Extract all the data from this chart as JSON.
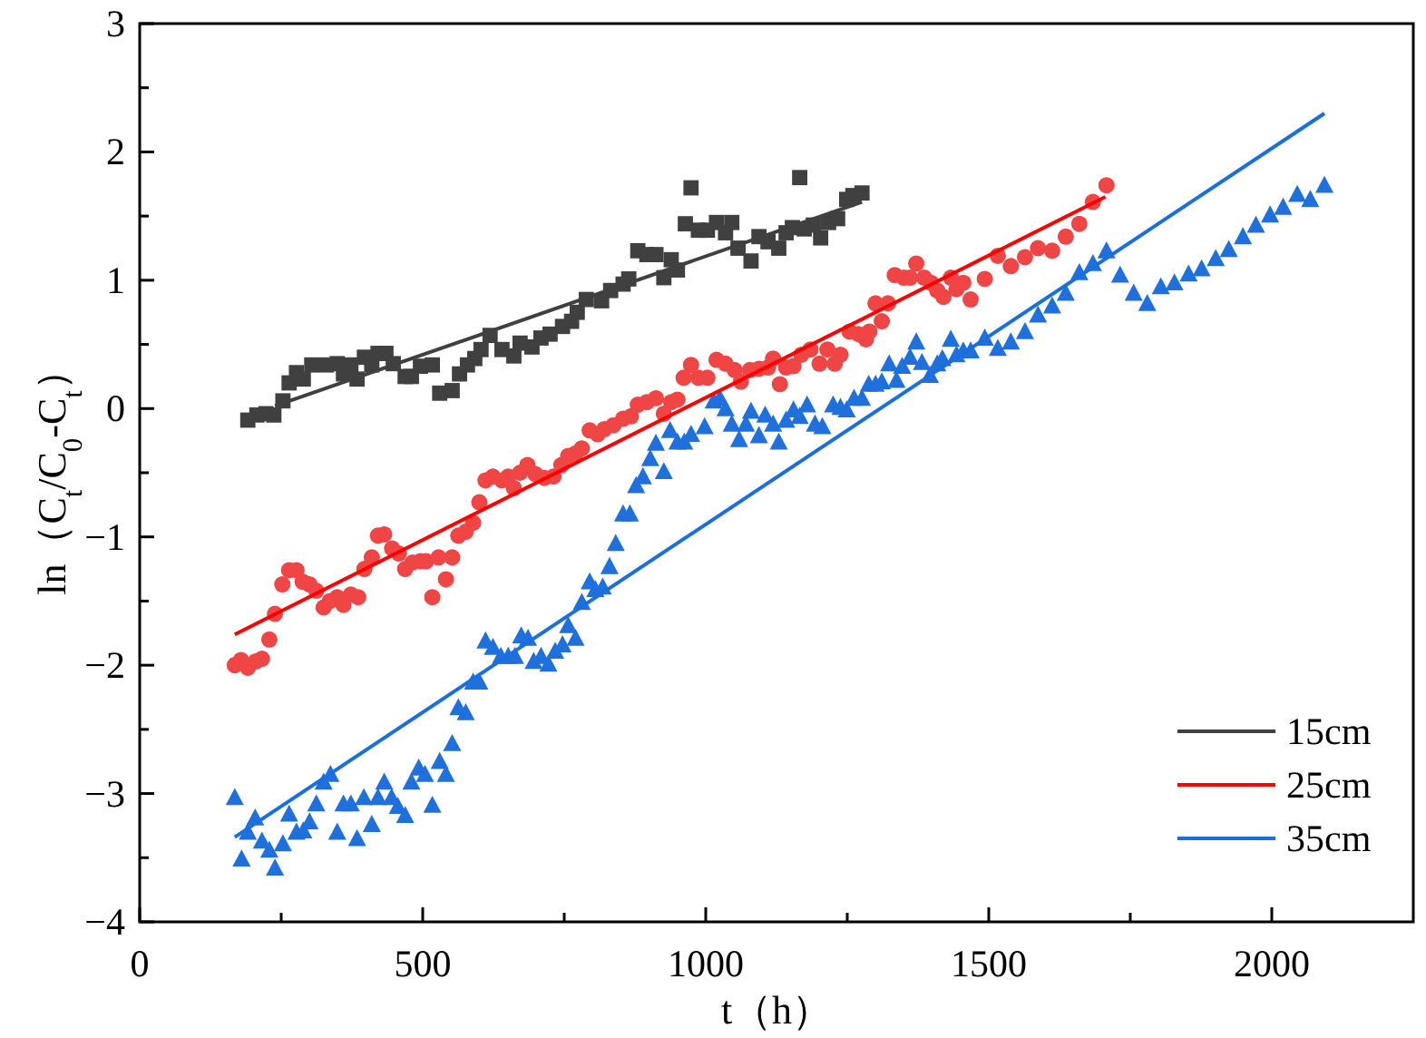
{
  "chart_data": {
    "type": "scatter",
    "xlabel": "t（h）",
    "ylabel": "ln（C$_{t}$/C$_{0}$-C$_{t}$）",
    "xlim": [
      0,
      2250
    ],
    "ylim": [
      -4,
      3
    ],
    "xticks": [
      0,
      {
        "value": 250,
        "label": null
      },
      500,
      {
        "value": 750,
        "label": null
      },
      1000,
      {
        "value": 1250,
        "label": null
      },
      1500,
      {
        "value": 1750,
        "label": null
      },
      2000
    ],
    "yticks": [
      {
        "value": -4,
        "label": "−4"
      },
      {
        "value": -3.5,
        "label": null
      },
      {
        "value": -3,
        "label": "−3"
      },
      {
        "value": -2.5,
        "label": null
      },
      {
        "value": -2,
        "label": "−2"
      },
      {
        "value": -1.5,
        "label": null
      },
      {
        "value": -1,
        "label": "−1"
      },
      {
        "value": -0.5,
        "label": null
      },
      0,
      {
        "value": 0.5,
        "label": null
      },
      1,
      {
        "value": 1.5,
        "label": null
      },
      2,
      {
        "value": 2.5,
        "label": null
      },
      3
    ],
    "grid": false,
    "legend": "bottom right",
    "series": [
      {
        "marker": "square",
        "color": "#404040",
        "x": [
          191,
          207,
          223,
          237,
          253,
          264,
          277,
          289,
          304,
          330,
          349,
          360,
          373,
          384,
          397,
          410,
          421,
          435,
          448,
          469,
          480,
          496,
          517,
          530,
          552,
          565,
          579,
          592,
          603,
          619,
          640,
          661,
          672,
          693,
          709,
          725,
          747,
          763,
          773,
          789,
          816,
          832,
          854,
          864,
          880,
          896,
          912,
          926,
          939,
          950,
          964,
          974,
          987,
          1003,
          1019,
          1035,
          1046,
          1057,
          1080,
          1094,
          1110,
          1129,
          1142,
          1153,
          1166,
          1174,
          1190,
          1203,
          1217,
          1233,
          1249,
          1260,
          1276
        ],
        "values": [
          -0.09,
          -0.05,
          -0.04,
          -0.05,
          0.06,
          0.2,
          0.28,
          0.23,
          0.34,
          0.34,
          0.35,
          0.27,
          0.34,
          0.23,
          0.4,
          0.34,
          0.43,
          0.43,
          0.35,
          0.25,
          0.25,
          0.33,
          0.34,
          0.12,
          0.14,
          0.27,
          0.34,
          0.39,
          0.46,
          0.57,
          0.46,
          0.41,
          0.51,
          0.48,
          0.55,
          0.58,
          0.64,
          0.68,
          0.75,
          0.85,
          0.84,
          0.92,
          0.97,
          1.01,
          1.23,
          1.2,
          1.2,
          1.02,
          1.16,
          1.08,
          1.44,
          1.72,
          1.39,
          1.39,
          1.45,
          1.37,
          1.45,
          1.25,
          1.15,
          1.34,
          1.3,
          1.25,
          1.37,
          1.41,
          1.8,
          1.4,
          1.43,
          1.33,
          1.45,
          1.48,
          1.63,
          1.66,
          1.68
        ]
      },
      {
        "marker": "circle",
        "color": "#f04545",
        "x": [
          168,
          179,
          191,
          205,
          216,
          229,
          239,
          252,
          264,
          277,
          288,
          300,
          312,
          325,
          336,
          349,
          360,
          373,
          386,
          397,
          410,
          421,
          432,
          446,
          458,
          469,
          482,
          496,
          506,
          517,
          528,
          541,
          552,
          563,
          576,
          589,
          600,
          611,
          624,
          640,
          651,
          661,
          672,
          685,
          699,
          715,
          731,
          745,
          757,
          770,
          781,
          795,
          809,
          821,
          837,
          854,
          868,
          880,
          896,
          912,
          926,
          939,
          950,
          961,
          974,
          987,
          1003,
          1019,
          1035,
          1051,
          1062,
          1078,
          1094,
          1110,
          1119,
          1131,
          1142,
          1155,
          1169,
          1185,
          1201,
          1215,
          1228,
          1238,
          1254,
          1270,
          1283,
          1289,
          1300,
          1311,
          1322,
          1334,
          1350,
          1361,
          1372,
          1386,
          1398,
          1409,
          1420,
          1433,
          1443,
          1455,
          1468,
          1493,
          1516,
          1539,
          1564,
          1587,
          1612,
          1636,
          1660,
          1684,
          1708
        ],
        "values": [
          -2.0,
          -1.96,
          -2.02,
          -1.97,
          -1.95,
          -1.8,
          -1.6,
          -1.37,
          -1.26,
          -1.26,
          -1.35,
          -1.37,
          -1.42,
          -1.55,
          -1.5,
          -1.47,
          -1.53,
          -1.45,
          -1.47,
          -1.25,
          -1.16,
          -0.99,
          -0.98,
          -1.09,
          -1.13,
          -1.25,
          -1.2,
          -1.19,
          -1.19,
          -1.47,
          -1.16,
          -1.33,
          -1.16,
          -0.99,
          -0.96,
          -0.89,
          -0.73,
          -0.56,
          -0.53,
          -0.56,
          -0.53,
          -0.62,
          -0.5,
          -0.44,
          -0.51,
          -0.54,
          -0.53,
          -0.44,
          -0.37,
          -0.35,
          -0.31,
          -0.17,
          -0.2,
          -0.16,
          -0.13,
          -0.08,
          -0.06,
          0.03,
          0.05,
          0.08,
          -0.04,
          0.05,
          0.07,
          0.24,
          0.34,
          0.24,
          0.24,
          0.38,
          0.35,
          0.3,
          0.21,
          0.3,
          0.31,
          0.32,
          0.39,
          0.19,
          0.32,
          0.33,
          0.42,
          0.46,
          0.35,
          0.46,
          0.35,
          0.42,
          0.6,
          0.58,
          0.54,
          0.6,
          0.82,
          0.68,
          0.82,
          1.04,
          1.02,
          1.02,
          1.13,
          1.02,
          0.98,
          0.92,
          0.87,
          1.02,
          0.93,
          0.98,
          0.85,
          1.01,
          1.19,
          1.11,
          1.18,
          1.25,
          1.23,
          1.34,
          1.44,
          1.61,
          1.74
        ]
      },
      {
        "marker": "triangle",
        "color": "#1f70dc",
        "x": [
          168,
          180,
          191,
          204,
          216,
          229,
          239,
          253,
          264,
          277,
          289,
          300,
          312,
          325,
          337,
          349,
          360,
          373,
          384,
          396,
          410,
          421,
          432,
          445,
          456,
          469,
          480,
          493,
          504,
          517,
          530,
          541,
          552,
          563,
          576,
          589,
          600,
          611,
          624,
          638,
          651,
          663,
          674,
          686,
          696,
          709,
          722,
          734,
          747,
          757,
          770,
          781,
          795,
          805,
          818,
          830,
          841,
          854,
          866,
          877,
          889,
          902,
          912,
          926,
          937,
          950,
          962,
          974,
          998,
          1014,
          1025,
          1035,
          1046,
          1059,
          1071,
          1080,
          1094,
          1105,
          1119,
          1129,
          1142,
          1155,
          1166,
          1179,
          1193,
          1206,
          1225,
          1238,
          1249,
          1262,
          1276,
          1288,
          1300,
          1311,
          1324,
          1337,
          1347,
          1361,
          1372,
          1382,
          1396,
          1409,
          1418,
          1433,
          1443,
          1455,
          1468,
          1493,
          1516,
          1539,
          1564,
          1587,
          1612,
          1636,
          1660,
          1684,
          1708,
          1732,
          1756,
          1780,
          1804,
          1828,
          1853,
          1876,
          1901,
          1924,
          1949,
          1972,
          1997,
          2020,
          2045,
          2068,
          2093
        ],
        "values": [
          -3.03,
          -3.51,
          -3.3,
          -3.19,
          -3.37,
          -3.44,
          -3.58,
          -3.39,
          -3.16,
          -3.3,
          -3.29,
          -3.22,
          -3.08,
          -2.91,
          -2.85,
          -3.3,
          -3.08,
          -3.08,
          -3.35,
          -3.03,
          -3.24,
          -3.03,
          -2.91,
          -3.03,
          -3.1,
          -3.17,
          -2.91,
          -2.8,
          -2.85,
          -3.09,
          -2.75,
          -2.85,
          -2.61,
          -2.33,
          -2.37,
          -2.13,
          -2.13,
          -1.81,
          -1.86,
          -1.93,
          -1.93,
          -1.93,
          -1.77,
          -1.79,
          -1.97,
          -1.93,
          -1.99,
          -1.89,
          -1.84,
          -1.69,
          -1.79,
          -1.51,
          -1.35,
          -1.41,
          -1.39,
          -1.23,
          -1.05,
          -0.82,
          -0.82,
          -0.6,
          -0.53,
          -0.39,
          -0.27,
          -0.49,
          -0.17,
          -0.26,
          -0.26,
          -0.2,
          -0.14,
          0.06,
          0.08,
          0.0,
          -0.12,
          -0.24,
          -0.12,
          -0.02,
          -0.21,
          -0.05,
          -0.12,
          -0.26,
          -0.09,
          -0.01,
          -0.06,
          0.03,
          -0.12,
          -0.14,
          0.03,
          0.01,
          -0.01,
          0.08,
          0.08,
          0.19,
          0.19,
          0.21,
          0.35,
          0.22,
          0.33,
          0.4,
          0.52,
          0.36,
          0.26,
          0.35,
          0.39,
          0.54,
          0.42,
          0.45,
          0.45,
          0.55,
          0.47,
          0.52,
          0.6,
          0.73,
          0.8,
          0.9,
          1.06,
          1.13,
          1.23,
          1.04,
          0.9,
          0.82,
          0.95,
          0.98,
          1.05,
          1.09,
          1.17,
          1.24,
          1.34,
          1.43,
          1.51,
          1.57,
          1.67,
          1.63,
          1.74
        ]
      },
      {
        "type": "line",
        "name": "15cm",
        "color": "#404040",
        "line_style": "solid",
        "x": [
          239,
          1276
        ],
        "values": [
          0.02,
          1.61
        ]
      },
      {
        "type": "line",
        "name": "25cm",
        "color": "#ff0000",
        "line_style": "solid",
        "x": [
          168,
          1706
        ],
        "values": [
          -1.76,
          1.65
        ]
      },
      {
        "type": "line",
        "name": "35cm",
        "color": "#1a6fe0",
        "line_style": "solid",
        "x": [
          168,
          2093
        ],
        "values": [
          -3.34,
          2.3
        ]
      }
    ]
  }
}
